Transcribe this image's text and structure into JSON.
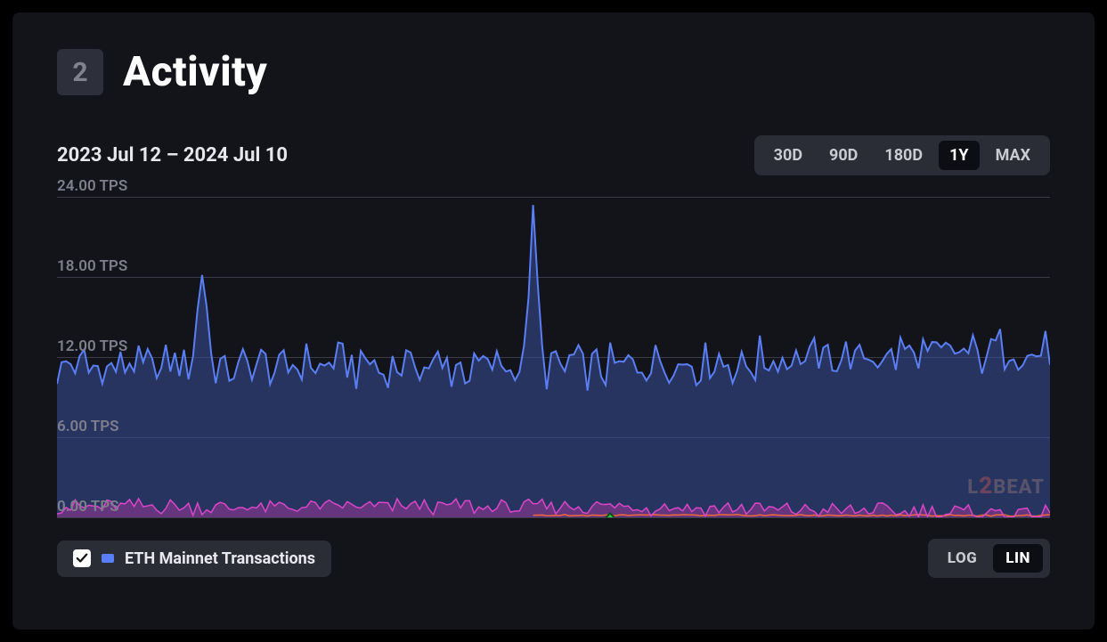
{
  "section": {
    "number": "2",
    "title": "Activity"
  },
  "dateRange": "2023 Jul 12 – 2024 Jul 10",
  "rangePicker": {
    "options": [
      "30D",
      "90D",
      "180D",
      "1Y",
      "MAX"
    ],
    "active": "1Y"
  },
  "chart": {
    "type": "area",
    "background_color": "#131419",
    "watermark": "L2BEAT",
    "yAxis": {
      "min": 0,
      "max": 24,
      "step": 6,
      "unit": "TPS",
      "label_color": "#7d7f8c",
      "grid_color": "#3a3c47",
      "label_fontsize": 17,
      "ticks": [
        "0.00 TPS",
        "6.00 TPS",
        "12.00 TPS",
        "18.00 TPS",
        "24.00 TPS"
      ]
    },
    "xAxis": {
      "points": 220,
      "spike1_index": 32,
      "spike2_index": 105,
      "milestone_index": 122
    },
    "series": [
      {
        "name": "ETH Mainnet Transactions",
        "line_color": "#5a7ef5",
        "fill_color": "#3a4e9a",
        "fill_opacity": 0.55,
        "line_width": 2,
        "baseline": 11.3,
        "noise_amp": 1.4,
        "spike1_value": 19.0,
        "spike2_value": 22.3,
        "late_bias": 1.3
      },
      {
        "name": "Secondary (pink)",
        "line_color": "#d946c8",
        "fill_color": "#b03aa5",
        "fill_opacity": 0.45,
        "line_width": 1.5,
        "baseline": 0.8,
        "noise_amp": 0.5,
        "late_bias": -0.5
      },
      {
        "name": "Tertiary (orange)",
        "line_color": "#ef6a3a",
        "line_width": 1.5,
        "baseline": 0.15,
        "noise_amp": 0.05,
        "start_index": 105
      }
    ],
    "milestone": {
      "shape": "diamond",
      "fill_color": "#2ecc40",
      "stroke_color": "#0a4d14",
      "size": 18,
      "x_index": 122,
      "y_value": -0.3
    }
  },
  "legend": {
    "checked": true,
    "swatch_color": "#5a7ef5",
    "label": "ETH Mainnet Transactions"
  },
  "scalePicker": {
    "options": [
      "LOG",
      "LIN"
    ],
    "active": "LIN"
  }
}
